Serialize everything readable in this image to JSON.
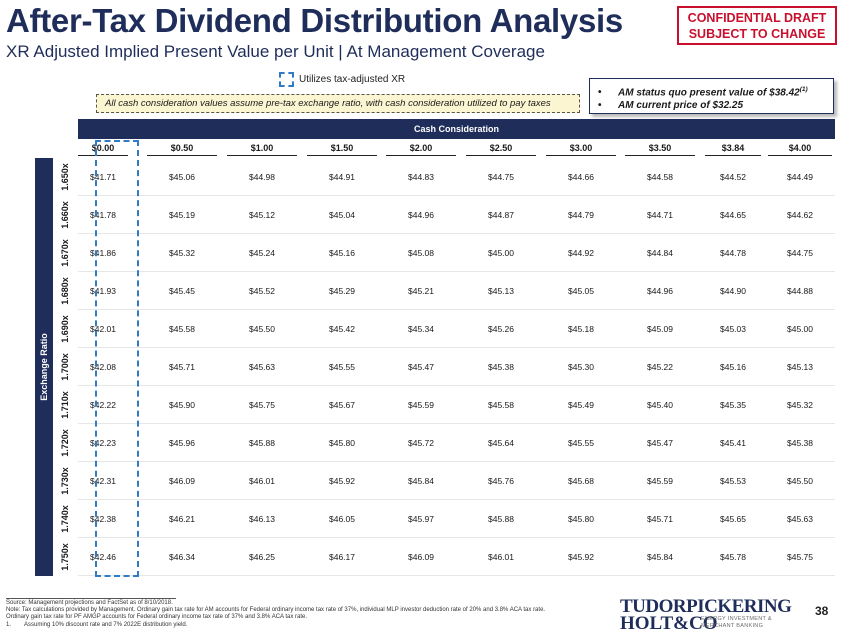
{
  "header": {
    "title": "After-Tax Dividend Distribution Analysis",
    "subtitle": "XR Adjusted Implied Present Value per Unit | At Management Coverage",
    "confidential_line1": "CONFIDENTIAL DRAFT",
    "confidential_line2": "SUBJECT TO CHANGE"
  },
  "legend": {
    "xr_label": "Utilizes tax-adjusted XR"
  },
  "note": "All cash consideration values assume pre-tax exchange ratio, with cash consideration utilized to pay taxes",
  "am_callout": {
    "line1_text": "AM status quo present value of $38.42",
    "line1_sup": "(1)",
    "line2": "AM current price of $32.25"
  },
  "table": {
    "cash_header": "Cash Consideration",
    "row_axis_label": "Exchange Ratio",
    "columns": [
      "$0.00",
      "$0.50",
      "$1.00",
      "$1.50",
      "$2.00",
      "$2.50",
      "$3.00",
      "$3.50",
      "$3.84",
      "$4.00"
    ],
    "rows": [
      {
        "label": "1.650x",
        "values": [
          "$41.71",
          "$45.06",
          "$44.98",
          "$44.91",
          "$44.83",
          "$44.75",
          "$44.66",
          "$44.58",
          "$44.52",
          "$44.49"
        ]
      },
      {
        "label": "1.660x",
        "values": [
          "$41.78",
          "$45.19",
          "$45.12",
          "$45.04",
          "$44.96",
          "$44.87",
          "$44.79",
          "$44.71",
          "$44.65",
          "$44.62"
        ]
      },
      {
        "label": "1.670x",
        "values": [
          "$41.86",
          "$45.32",
          "$45.24",
          "$45.16",
          "$45.08",
          "$45.00",
          "$44.92",
          "$44.84",
          "$44.78",
          "$44.75"
        ]
      },
      {
        "label": "1.680x",
        "values": [
          "$41.93",
          "$45.45",
          "$45.52",
          "$45.29",
          "$45.21",
          "$45.13",
          "$45.05",
          "$44.96",
          "$44.90",
          "$44.88"
        ]
      },
      {
        "label": "1.690x",
        "values": [
          "$42.01",
          "$45.58",
          "$45.50",
          "$45.42",
          "$45.34",
          "$45.26",
          "$45.18",
          "$45.09",
          "$45.03",
          "$45.00"
        ]
      },
      {
        "label": "1.700x",
        "values": [
          "$42.08",
          "$45.71",
          "$45.63",
          "$45.55",
          "$45.47",
          "$45.38",
          "$45.30",
          "$45.22",
          "$45.16",
          "$45.13"
        ]
      },
      {
        "label": "1.710x",
        "values": [
          "$42.22",
          "$45.90",
          "$45.75",
          "$45.67",
          "$45.59",
          "$45.58",
          "$45.49",
          "$45.40",
          "$45.35",
          "$45.32"
        ]
      },
      {
        "label": "1.720x",
        "values": [
          "$42.23",
          "$45.96",
          "$45.88",
          "$45.80",
          "$45.72",
          "$45.64",
          "$45.55",
          "$45.47",
          "$45.41",
          "$45.38"
        ]
      },
      {
        "label": "1.730x",
        "values": [
          "$42.31",
          "$46.09",
          "$46.01",
          "$45.92",
          "$45.84",
          "$45.76",
          "$45.68",
          "$45.59",
          "$45.53",
          "$45.50"
        ]
      },
      {
        "label": "1.740x",
        "values": [
          "$42.38",
          "$46.21",
          "$46.13",
          "$46.05",
          "$45.97",
          "$45.88",
          "$45.80",
          "$45.71",
          "$45.65",
          "$45.63"
        ]
      },
      {
        "label": "1.750x",
        "values": [
          "$42.46",
          "$46.34",
          "$46.25",
          "$46.17",
          "$46.09",
          "$46.01",
          "$45.92",
          "$45.84",
          "$45.78",
          "$45.75"
        ]
      }
    ]
  },
  "footnotes": {
    "source": "Source: Management projections and FactSet as of 8/10/2018.",
    "note1": "Note: Tax calculations provided by Management. Ordinary gain tax rate for AM accounts for Federal ordinary income tax rate of 37%, individual MLP investor deduction rate of 20% and 3.8% ACA tax rate.",
    "note2": "Ordinary gain tax rate for PF AMGP accounts for Federal ordinary income tax rate of 37% and 3.8% ACA tax rate.",
    "fn1_marker": "1.",
    "fn1_text": "Assuming 10% discount rate and 7% 2022E distribution yield."
  },
  "logo": {
    "line1": "TUDORPICKERING",
    "line2": "HOLT&CO",
    "tag1": "ENERGY INVESTMENT &",
    "tag2": "MERCHANT BANKING"
  },
  "page_number": "38"
}
